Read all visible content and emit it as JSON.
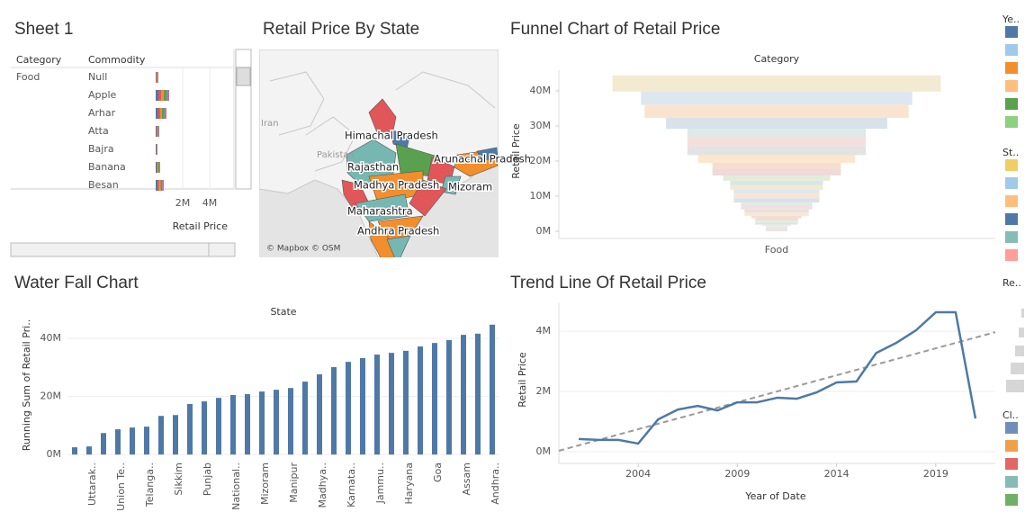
{
  "dashboard": {
    "sheet1": {
      "title": "Sheet 1",
      "headers": [
        "Category",
        "Commodity"
      ],
      "category": "Food",
      "commodities": [
        "Null",
        "Apple",
        "Arhar",
        "Atta",
        "Bajra",
        "Banana",
        "Besan"
      ],
      "values": [
        200000,
        1000000,
        800000,
        270000,
        130000,
        330000,
        600000
      ],
      "xlim": [
        0,
        5800000
      ],
      "xticks": [
        {
          "value": 2000000,
          "label": "2M"
        },
        {
          "value": 4000000,
          "label": "4M"
        }
      ],
      "x_title": "Retail Price"
    },
    "map": {
      "title": "Retail Price By State",
      "labels": [
        "Iran",
        "Pakistan",
        "Himachal Pradesh",
        "Arunachal Pradesh",
        "Rajasthan",
        "Madhya Pradesh",
        "Mizoram",
        "Maharashtra",
        "Andhra Pradesh"
      ],
      "attribution": "© Mapbox © OSM"
    },
    "legends": [
      {
        "title": "Ye..",
        "colors": [
          "#4e79a7",
          "#a0cbe8",
          "#f28e2b",
          "#ffbe7d",
          "#59a14f",
          "#8cd17d"
        ]
      },
      {
        "title": "St..",
        "colors": [
          "#f1ce63",
          "#a0cbe8",
          "#ffbe7d",
          "#4e79a7",
          "#86bcb6",
          "#ff9d9a"
        ]
      },
      {
        "title": "Re..",
        "colors": []
      },
      {
        "title": "Cl..",
        "colors": [
          "#6f8fba",
          "#f0a04b",
          "#e26666",
          "#86bcb6",
          "#6fb162"
        ]
      }
    ]
  },
  "chart_data": [
    {
      "type": "funnel",
      "title": "Funnel Chart of Retail Price",
      "header": "Category",
      "category": "Food",
      "y_title": "Retail Price",
      "values": [
        4600000,
        3800000,
        3700000,
        3100000,
        2500000,
        2500000,
        2500000,
        2200000,
        1800000,
        1800000,
        1500000,
        1300000,
        1300000,
        1200000,
        1200000,
        1200000,
        1000000,
        1000000,
        900000,
        900000,
        700000,
        600000,
        600000,
        600000,
        400000,
        300000,
        300000,
        300000,
        300000,
        300000
      ],
      "palette": [
        "#f3ead2",
        "#dde7f0",
        "#fbe4cf",
        "#d8e2ea",
        "#dfe9e7",
        "#f5dfdd",
        "#e3e3e3",
        "#fbe7cd",
        "#f6ddd2",
        "#efdada",
        "#e4ecd9",
        "#d9e6e4"
      ],
      "ylim": [
        -2050000,
        45900000
      ],
      "yticks": [
        {
          "value": 0,
          "label": "0M"
        },
        {
          "value": 10000000,
          "label": "10M"
        },
        {
          "value": 20000000,
          "label": "20M"
        },
        {
          "value": 30000000,
          "label": "30M"
        },
        {
          "value": 40000000,
          "label": "40M"
        }
      ]
    },
    {
      "type": "bar",
      "title": "Water Fall Chart",
      "header": "State",
      "y_title": "Running Sum of Retail Pri..",
      "color": "#4e79a7",
      "categories": [
        null,
        "Uttarak..",
        null,
        "Union Te..",
        null,
        "Telanga..",
        null,
        "Sikkim",
        null,
        "Punjab",
        null,
        "National..",
        null,
        "Mizoram",
        null,
        "Manipur",
        null,
        "Madhya..",
        null,
        "Karnata..",
        null,
        "Jammu..",
        null,
        "Haryana",
        null,
        "Goa",
        null,
        "Assam",
        null,
        "Andhra.."
      ],
      "values": [
        2500000,
        2800000,
        7400000,
        8700000,
        9300000,
        9600000,
        13300000,
        13600000,
        17400000,
        18300000,
        19500000,
        20500000,
        20800000,
        21700000,
        22300000,
        22900000,
        25100000,
        27600000,
        30100000,
        31900000,
        33200000,
        34400000,
        35000000,
        35700000,
        37200000,
        38400000,
        39400000,
        41200000,
        41600000,
        44700000
      ],
      "ylim": [
        -1500000,
        46500000
      ],
      "yticks": [
        {
          "value": 0,
          "label": "0M"
        },
        {
          "value": 20000000,
          "label": "20M"
        },
        {
          "value": 40000000,
          "label": "40M"
        }
      ],
      "grid": true
    },
    {
      "type": "line",
      "title": "Trend Line Of Retail Price",
      "x_title": "Year of Date",
      "y_title": "Retail Price",
      "color": "#4e79a7",
      "x": [
        2001,
        2002,
        2003,
        2004,
        2005,
        2006,
        2007,
        2008,
        2009,
        2010,
        2011,
        2012,
        2013,
        2014,
        2015,
        2016,
        2017,
        2018,
        2019,
        2020,
        2021
      ],
      "values": [
        420000,
        390000,
        390000,
        270000,
        1070000,
        1400000,
        1520000,
        1370000,
        1640000,
        1640000,
        1790000,
        1760000,
        1970000,
        2300000,
        2330000,
        3280000,
        3610000,
        4030000,
        4630000,
        4630000,
        1100000
      ],
      "trend_line": {
        "color": "#999999",
        "x": [
          2000,
          2022
        ],
        "values": [
          30000,
          3970000
        ]
      },
      "xlim": [
        2000,
        2022
      ],
      "xticks": [
        2004,
        2009,
        2014,
        2019
      ],
      "ylim": [
        -390000,
        4930000
      ],
      "yticks": [
        {
          "value": 0,
          "label": "0M"
        },
        {
          "value": 2000000,
          "label": "2M"
        },
        {
          "value": 4000000,
          "label": "4M"
        }
      ],
      "grid": true
    }
  ]
}
